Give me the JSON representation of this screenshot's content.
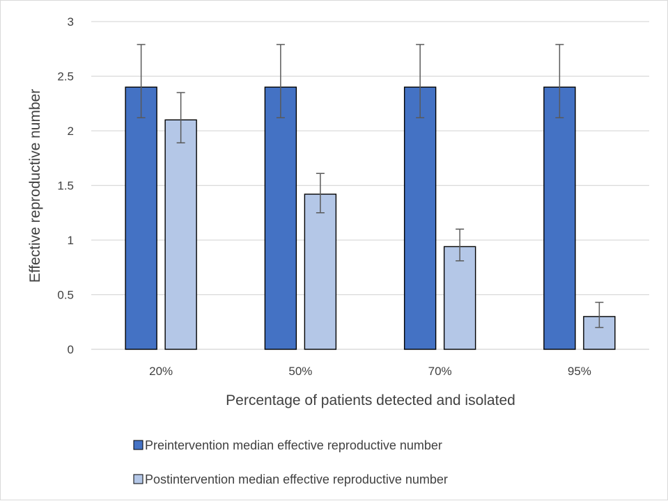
{
  "chart_data": {
    "type": "bar",
    "title": "",
    "xlabel": "Percentage of patients detected and isolated",
    "ylabel": "Effective reproductive number",
    "categories": [
      "20%",
      "50%",
      "70%",
      "95%"
    ],
    "ylim": [
      0,
      3
    ],
    "yticks": [
      0,
      0.5,
      1,
      1.5,
      2,
      2.5,
      3
    ],
    "ytick_labels": [
      "0",
      "0.5",
      "1",
      "1.5",
      "2",
      "2.5",
      "3"
    ],
    "grid": true,
    "legend_position": "bottom",
    "series": [
      {
        "name": "Preintervention median effective reproductive number",
        "color": "#4472c4",
        "values": [
          2.4,
          2.4,
          2.4,
          2.4
        ],
        "error_low": [
          2.12,
          2.12,
          2.12,
          2.12
        ],
        "error_high": [
          2.79,
          2.79,
          2.79,
          2.79
        ]
      },
      {
        "name": "Postintervention median effective reproductive number",
        "color": "#b4c7e7",
        "values": [
          2.1,
          1.42,
          0.94,
          0.3
        ],
        "error_low": [
          1.89,
          1.25,
          0.81,
          0.2
        ],
        "error_high": [
          2.35,
          1.61,
          1.1,
          0.43
        ]
      }
    ]
  }
}
